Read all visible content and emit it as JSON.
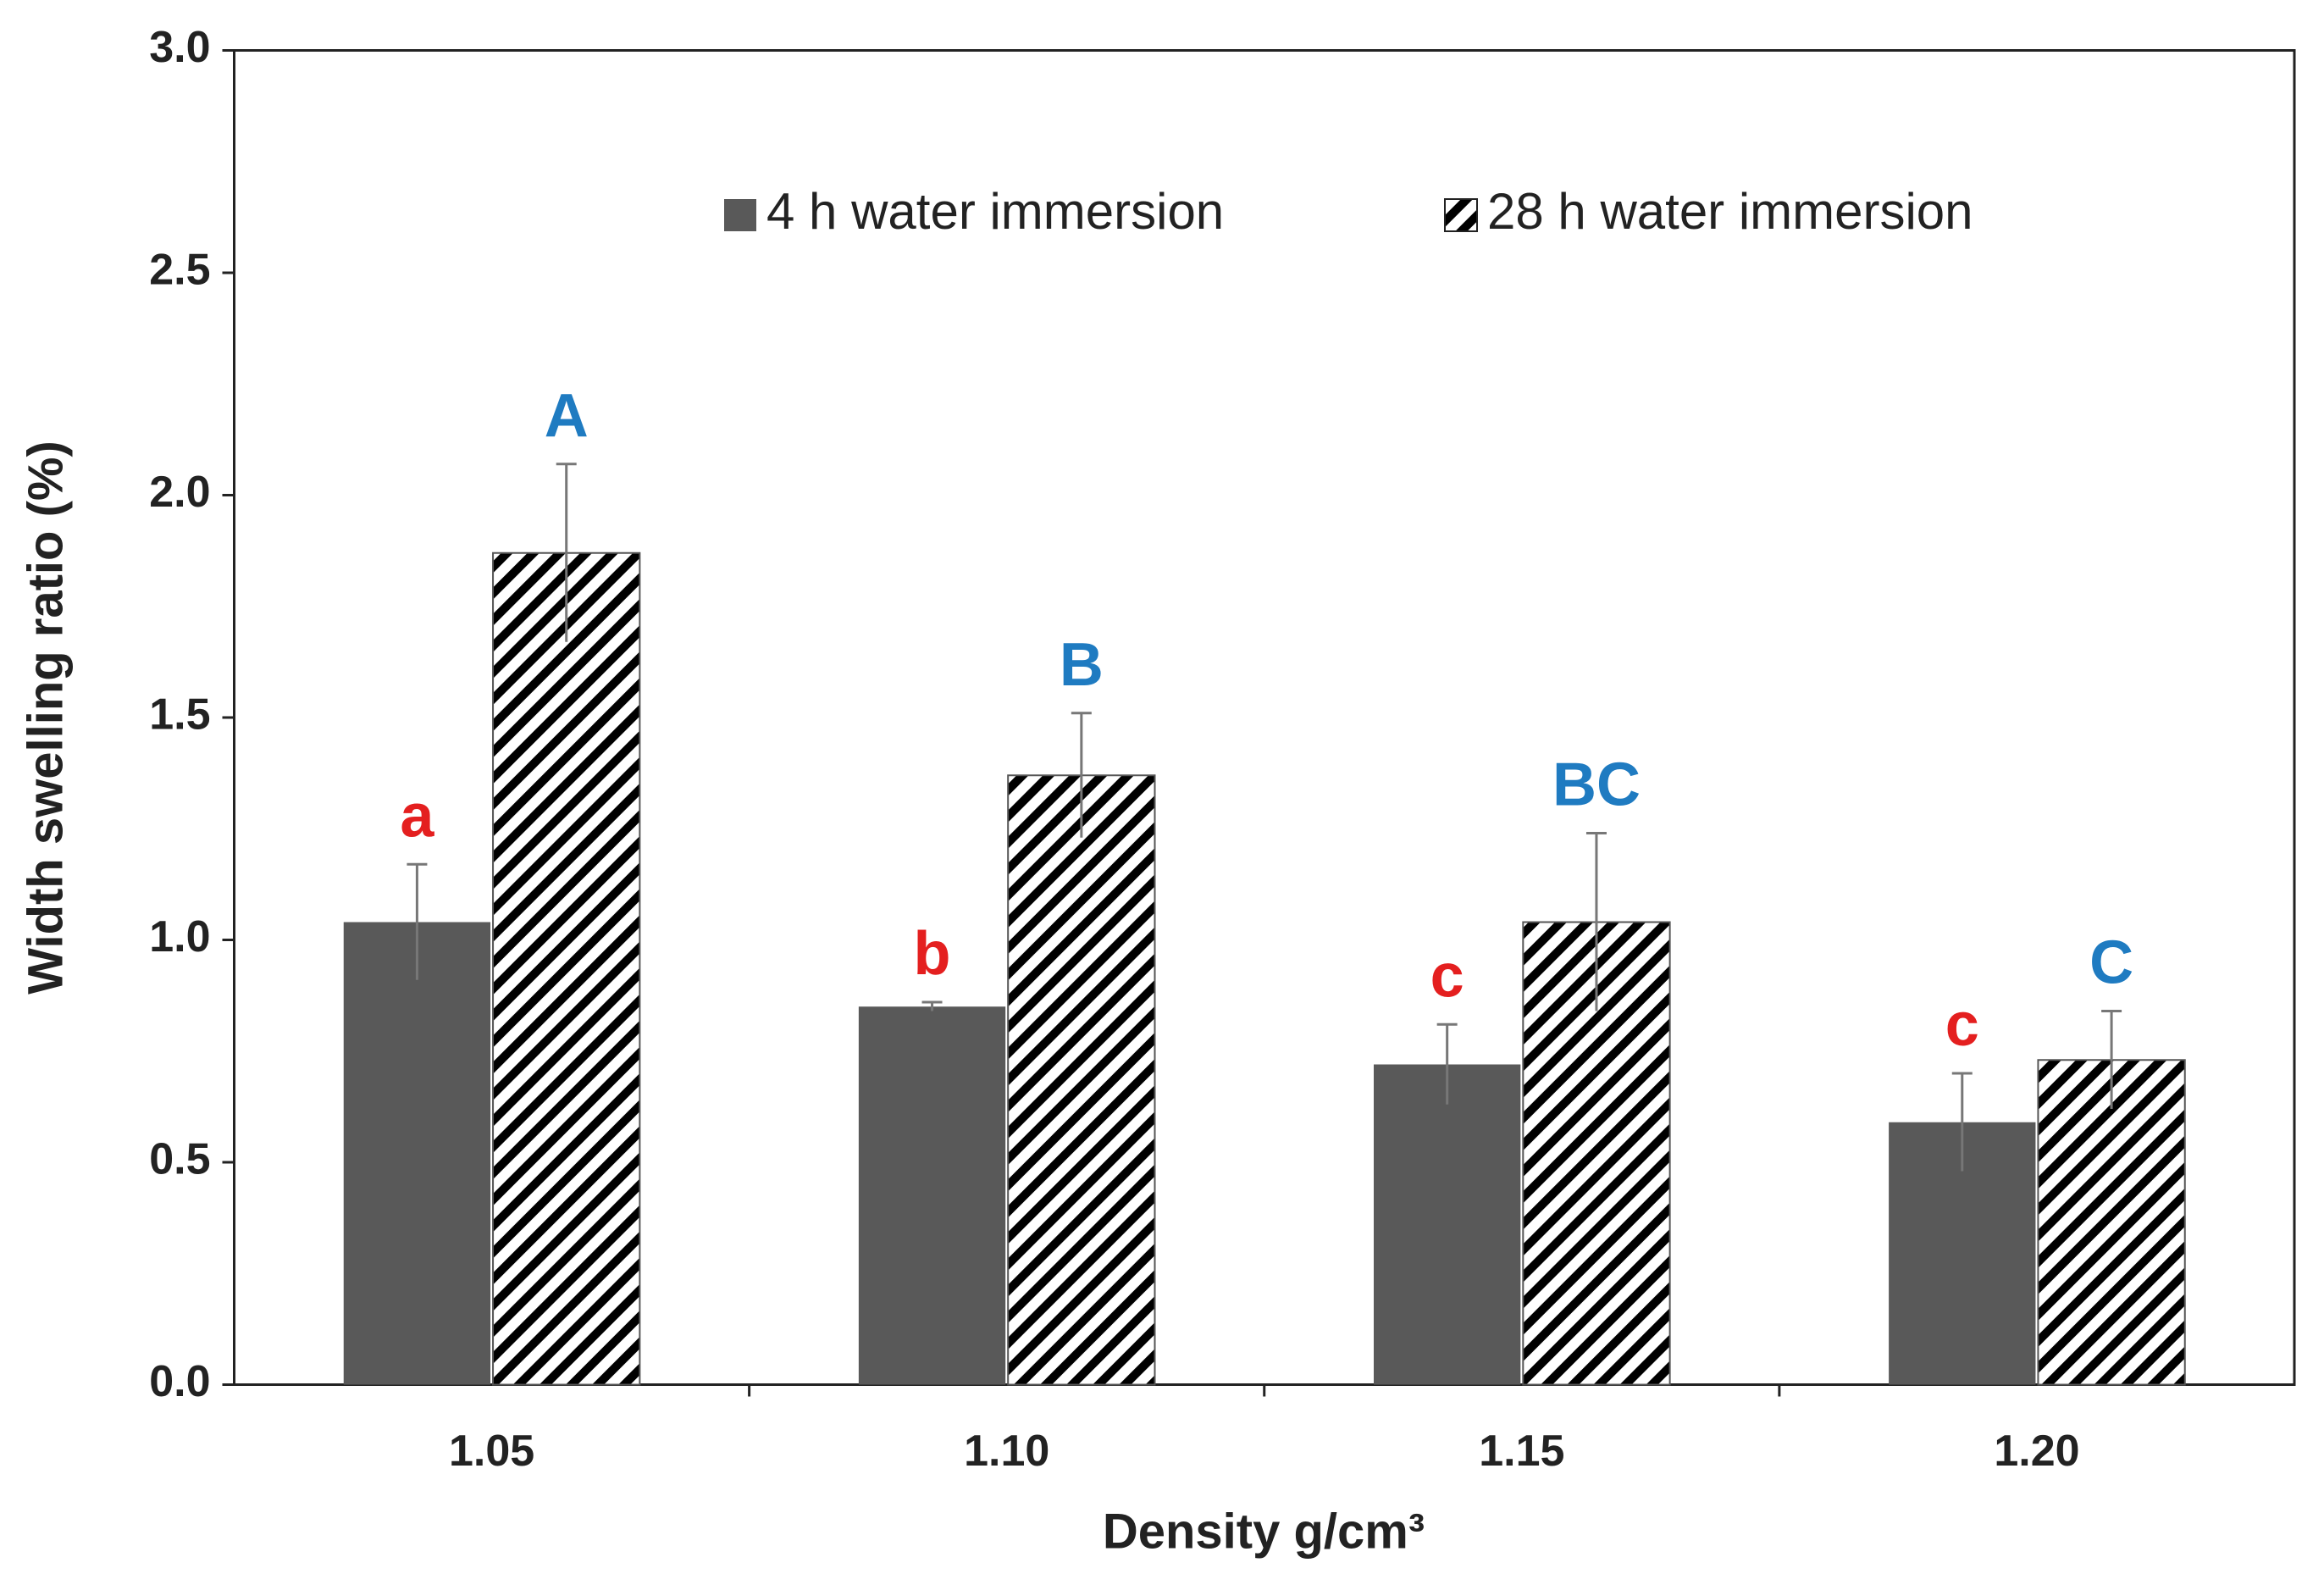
{
  "chart_data": {
    "type": "bar",
    "xlabel": "Density g/cm³",
    "ylabel": "Width swelling ratio  (%)",
    "categories": [
      "1.05",
      "1.10",
      "1.15",
      "1.20"
    ],
    "series": [
      {
        "name": "4 h water immersion",
        "color": "#595959",
        "pattern": "solid",
        "values": [
          1.04,
          0.85,
          0.72,
          0.59
        ],
        "errors": [
          0.13,
          0.01,
          0.09,
          0.11
        ],
        "letters": [
          "a",
          "b",
          "c",
          "c"
        ],
        "letter_color": "#e41f1f"
      },
      {
        "name": "28 h water immersion",
        "color": "#000000",
        "pattern": "hatch",
        "values": [
          1.87,
          1.37,
          1.04,
          0.73
        ],
        "errors": [
          0.2,
          0.14,
          0.2,
          0.11
        ],
        "letters": [
          "A",
          "B",
          "BC",
          "C"
        ],
        "letter_color": "#1f7bc1"
      }
    ],
    "ylim": [
      0,
      3
    ],
    "yticks": [
      {
        "value": 0,
        "label": "0.0"
      },
      {
        "value": 0.5,
        "label": "0.5"
      },
      {
        "value": 1,
        "label": "1.0"
      },
      {
        "value": 1.5,
        "label": "1.5"
      },
      {
        "value": 2,
        "label": "2.0"
      },
      {
        "value": 2.5,
        "label": "2.5"
      },
      {
        "value": 3,
        "label": "3.0"
      }
    ],
    "grid": false
  }
}
